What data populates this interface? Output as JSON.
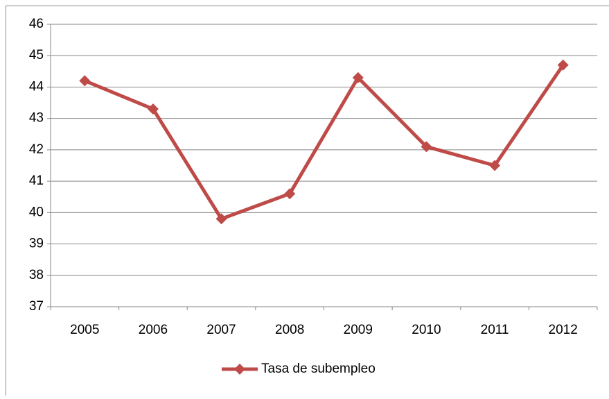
{
  "chart_data": {
    "type": "line",
    "categories": [
      "2005",
      "2006",
      "2007",
      "2008",
      "2009",
      "2010",
      "2011",
      "2012"
    ],
    "series": [
      {
        "name": "Tasa de subempleo",
        "color": "#be4b48",
        "values": [
          44.2,
          43.3,
          39.8,
          40.6,
          44.3,
          42.1,
          41.5,
          44.7
        ]
      }
    ],
    "ylim": [
      37,
      46
    ],
    "yticks": [
      37,
      38,
      39,
      40,
      41,
      42,
      43,
      44,
      45,
      46
    ],
    "grid": true,
    "legend": "bottom"
  }
}
